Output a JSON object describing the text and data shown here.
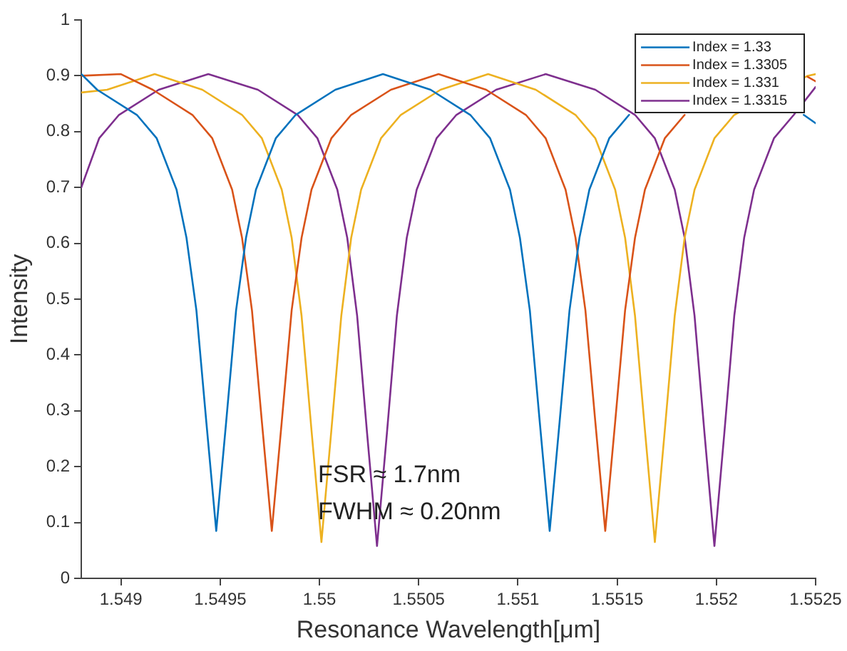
{
  "chart_data": {
    "type": "line",
    "xlabel": "Resonance Wavelength[μm]",
    "ylabel": "Intensity",
    "xlim": [
      1.5488,
      1.5525
    ],
    "xticks": [
      1.549,
      1.5495,
      1.55,
      1.5505,
      1.551,
      1.5515,
      1.552,
      1.5525
    ],
    "ylim": [
      0,
      1
    ],
    "yticks": [
      0,
      0.1,
      0.2,
      0.3,
      0.4,
      0.5,
      0.6,
      0.7,
      0.8,
      0.9,
      1
    ],
    "grid": false,
    "legend": "top right",
    "marker": "none",
    "line_style": "solid",
    "annotations": [
      "FSR ≈ 1.7nm",
      "FWHM ≈ 0.20nm"
    ],
    "series": [
      {
        "name": "Index = 1.33",
        "color": "#0072bd",
        "x": [
          1.5488,
          1.54888,
          1.54908,
          1.54918,
          1.54928,
          1.54933,
          1.54938,
          1.54943,
          1.54948,
          1.54953,
          1.54958,
          1.54963,
          1.54968,
          1.54978,
          1.54988,
          1.55008,
          1.55032,
          1.55056,
          1.55076,
          1.55086,
          1.55096,
          1.55101,
          1.55106,
          1.55111,
          1.55116,
          1.55121,
          1.55126,
          1.55131,
          1.55136,
          1.55146,
          1.55156,
          1.55176,
          1.552,
          1.55224,
          1.55244,
          1.5525
        ],
        "values": [
          0.903,
          0.875,
          0.83,
          0.788,
          0.696,
          0.61,
          0.48,
          0.28,
          0.085,
          0.28,
          0.48,
          0.61,
          0.696,
          0.788,
          0.83,
          0.875,
          0.903,
          0.875,
          0.83,
          0.788,
          0.696,
          0.61,
          0.48,
          0.28,
          0.085,
          0.28,
          0.48,
          0.61,
          0.696,
          0.788,
          0.83,
          null,
          null,
          null,
          0.83,
          0.815
        ]
      },
      {
        "name": "Index = 1.3305",
        "color": "#d95319",
        "x": [
          1.5488,
          1.549,
          1.54916,
          1.54936,
          1.54946,
          1.54956,
          1.54961,
          1.54966,
          1.54971,
          1.54976,
          1.54981,
          1.54986,
          1.54991,
          1.54996,
          1.55006,
          1.55016,
          1.55036,
          1.5506,
          1.55084,
          1.55104,
          1.55114,
          1.55124,
          1.55129,
          1.55134,
          1.55139,
          1.55144,
          1.55149,
          1.55154,
          1.55159,
          1.55164,
          1.55174,
          1.55184,
          1.55204,
          1.55246,
          1.5525
        ],
        "values": [
          0.9,
          0.903,
          0.875,
          0.83,
          0.788,
          0.696,
          0.61,
          0.48,
          0.28,
          0.085,
          0.28,
          0.48,
          0.61,
          0.696,
          0.788,
          0.83,
          0.875,
          0.903,
          0.875,
          0.83,
          0.788,
          0.696,
          0.61,
          0.48,
          0.28,
          0.085,
          0.28,
          0.48,
          0.61,
          0.696,
          0.788,
          0.83,
          null,
          0.898,
          0.89
        ]
      },
      {
        "name": "Index = 1.331",
        "color": "#edb120",
        "x": [
          1.5488,
          1.54893,
          1.54917,
          1.54941,
          1.54961,
          1.54971,
          1.54981,
          1.54986,
          1.54991,
          1.54996,
          1.55001,
          1.55006,
          1.55011,
          1.55016,
          1.55021,
          1.55031,
          1.55041,
          1.55061,
          1.55085,
          1.55109,
          1.55129,
          1.55139,
          1.55149,
          1.55154,
          1.55159,
          1.55164,
          1.55169,
          1.55174,
          1.55179,
          1.55184,
          1.55189,
          1.55199,
          1.55209,
          1.55246,
          1.5525
        ],
        "values": [
          0.87,
          0.875,
          0.903,
          0.875,
          0.83,
          0.788,
          0.696,
          0.61,
          0.47,
          0.265,
          0.065,
          0.265,
          0.47,
          0.61,
          0.696,
          0.788,
          0.83,
          0.875,
          0.903,
          0.875,
          0.83,
          0.788,
          0.696,
          0.61,
          0.47,
          0.265,
          0.065,
          0.265,
          0.47,
          0.61,
          0.696,
          0.788,
          0.83,
          0.9,
          0.903
        ]
      },
      {
        "name": "Index = 1.3315",
        "color": "#7e2f8e",
        "x": [
          1.5488,
          1.54889,
          1.54899,
          1.54919,
          1.54944,
          1.54969,
          1.54989,
          1.54999,
          1.55009,
          1.55014,
          1.55019,
          1.55024,
          1.55029,
          1.55034,
          1.55039,
          1.55044,
          1.55049,
          1.55059,
          1.55069,
          1.55089,
          1.55114,
          1.55139,
          1.55159,
          1.55169,
          1.55179,
          1.55184,
          1.55189,
          1.55194,
          1.55199,
          1.55204,
          1.55209,
          1.55214,
          1.55219,
          1.55229,
          1.55239,
          1.5525
        ],
        "values": [
          0.7,
          0.788,
          0.83,
          0.875,
          0.903,
          0.875,
          0.83,
          0.788,
          0.696,
          0.61,
          0.47,
          0.26,
          0.058,
          0.26,
          0.47,
          0.61,
          0.696,
          0.788,
          0.83,
          0.875,
          0.903,
          0.875,
          0.83,
          0.788,
          0.696,
          0.61,
          0.47,
          0.26,
          0.058,
          0.26,
          0.47,
          0.61,
          0.696,
          0.788,
          0.83,
          0.88
        ]
      }
    ]
  }
}
